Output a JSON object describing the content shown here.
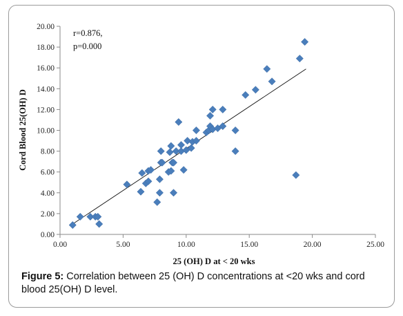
{
  "chart_data": {
    "type": "scatter",
    "title": "",
    "xlabel": "25 (OH) D at < 20 wks",
    "ylabel": "Cord Blood 25(OH) D",
    "xlim": [
      0,
      25
    ],
    "ylim": [
      0,
      20
    ],
    "x_ticks": [
      "0.00",
      "5.00",
      "10.00",
      "15.00",
      "20.00",
      "25.00"
    ],
    "y_ticks": [
      "0.00",
      "2.00",
      "4.00",
      "6.00",
      "8.00",
      "10.00",
      "12.00",
      "14.00",
      "16.00",
      "18.00",
      "20.00"
    ],
    "grid": false,
    "marker_color": "#4a7ebb",
    "annotations": [
      "r=0.876,",
      "p=0.000"
    ],
    "trendline": {
      "x": [
        1.0,
        19.5
      ],
      "y": [
        1.0,
        15.9
      ]
    },
    "points": [
      [
        1.0,
        0.9
      ],
      [
        1.6,
        1.7
      ],
      [
        2.4,
        1.7
      ],
      [
        2.8,
        1.7
      ],
      [
        3.0,
        1.7
      ],
      [
        3.1,
        1.0
      ],
      [
        5.3,
        4.8
      ],
      [
        6.4,
        4.1
      ],
      [
        6.5,
        5.9
      ],
      [
        6.8,
        4.9
      ],
      [
        7.0,
        5.1
      ],
      [
        7.0,
        6.1
      ],
      [
        7.2,
        6.2
      ],
      [
        7.7,
        3.1
      ],
      [
        7.9,
        5.3
      ],
      [
        7.9,
        4.0
      ],
      [
        8.0,
        6.9
      ],
      [
        8.0,
        8.0
      ],
      [
        8.1,
        6.9
      ],
      [
        8.6,
        6.0
      ],
      [
        8.7,
        7.9
      ],
      [
        8.8,
        6.1
      ],
      [
        8.8,
        8.5
      ],
      [
        8.9,
        6.9
      ],
      [
        9.0,
        6.9
      ],
      [
        9.0,
        4.0
      ],
      [
        9.2,
        8.0
      ],
      [
        9.4,
        10.8
      ],
      [
        9.6,
        8.0
      ],
      [
        9.6,
        8.6
      ],
      [
        9.8,
        6.2
      ],
      [
        10.0,
        8.1
      ],
      [
        10.1,
        9.0
      ],
      [
        10.4,
        8.3
      ],
      [
        10.5,
        8.9
      ],
      [
        10.8,
        9.0
      ],
      [
        10.8,
        10.0
      ],
      [
        11.6,
        9.8
      ],
      [
        11.8,
        10.0
      ],
      [
        11.9,
        10.4
      ],
      [
        11.9,
        11.4
      ],
      [
        12.1,
        12.0
      ],
      [
        12.1,
        10.1
      ],
      [
        12.5,
        10.2
      ],
      [
        12.9,
        10.4
      ],
      [
        12.9,
        12.0
      ],
      [
        13.9,
        8.0
      ],
      [
        13.9,
        10.0
      ],
      [
        14.7,
        13.4
      ],
      [
        15.5,
        13.9
      ],
      [
        16.4,
        15.9
      ],
      [
        16.8,
        14.7
      ],
      [
        18.7,
        5.7
      ],
      [
        19.0,
        16.9
      ],
      [
        19.4,
        18.5
      ]
    ]
  },
  "caption": {
    "label": "Figure 5:",
    "text": " Correlation between 25 (OH) D concentrations at <20 wks and cord blood 25(OH) D level."
  }
}
